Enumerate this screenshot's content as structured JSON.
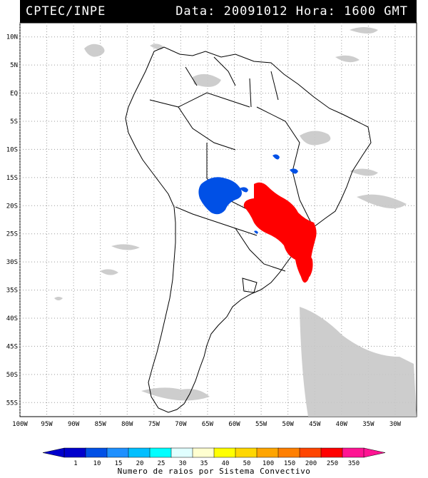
{
  "header": {
    "left_text": "CPTEC/INPE",
    "right_text": "Data: 20091012 Hora: 1600 GMT"
  },
  "lat_labels": [
    "10N",
    "5N",
    "EQ",
    "5S",
    "10S",
    "15S",
    "20S",
    "25S",
    "30S",
    "35S",
    "40S",
    "45S",
    "50S",
    "55S"
  ],
  "lon_labels": [
    "100W",
    "95W",
    "90W",
    "85W",
    "80W",
    "75W",
    "70W",
    "65W",
    "60W",
    "55W",
    "50W",
    "45W",
    "40W",
    "35W",
    "30W"
  ],
  "colorbar": {
    "labels": [
      "1",
      "10",
      "15",
      "20",
      "25",
      "30",
      "35",
      "40",
      "50",
      "100",
      "150",
      "200",
      "250",
      "350"
    ],
    "colors": [
      "#0000cc",
      "#0050e6",
      "#1e90ff",
      "#00bfff",
      "#00ffff",
      "#e0ffff",
      "#ffffd0",
      "#ffff00",
      "#ffd700",
      "#ffa500",
      "#ff7f00",
      "#ff4500",
      "#ff0000",
      "#ff1493"
    ],
    "title": "Numero de raios por Sistema Convectivo"
  },
  "colors": {
    "land_line": "#000000",
    "cloud": "#c8c8c8",
    "low_count": "#0050e6",
    "high_count": "#ff0000"
  }
}
